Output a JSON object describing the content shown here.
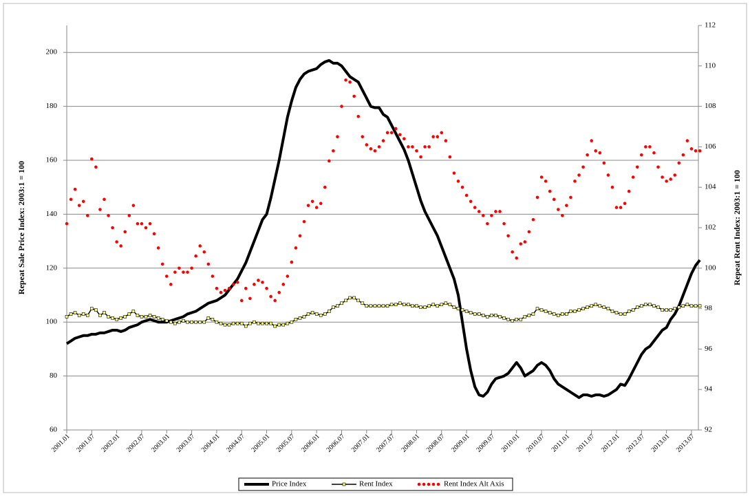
{
  "chart_data": {
    "type": "line",
    "y_label": "Repeat Sale Price Index: 2003:1 = 100",
    "y2_label": "Repeat Rent Index: 2003:1 = 100",
    "ylim": [
      60,
      210
    ],
    "yticks": [
      60,
      80,
      100,
      120,
      140,
      160,
      180,
      200
    ],
    "y2lim": [
      92,
      112
    ],
    "y2ticks": [
      92,
      94,
      96,
      98,
      100,
      102,
      104,
      106,
      108,
      110,
      112
    ],
    "grid": true,
    "legend": "bottom",
    "categories": [
      "2001.01",
      null,
      null,
      null,
      null,
      null,
      "2001.07",
      null,
      null,
      null,
      null,
      null,
      "2002.01",
      null,
      null,
      null,
      null,
      null,
      "2002.07",
      null,
      null,
      null,
      null,
      null,
      "2003.01",
      null,
      null,
      null,
      null,
      null,
      "2003.07",
      null,
      null,
      null,
      null,
      null,
      "2004.01",
      null,
      null,
      null,
      null,
      null,
      "2004.07",
      null,
      null,
      null,
      null,
      null,
      "2005.01",
      null,
      null,
      null,
      null,
      null,
      "2005.07",
      null,
      null,
      null,
      null,
      null,
      "2006.01",
      null,
      null,
      null,
      null,
      null,
      "2006.07",
      null,
      null,
      null,
      null,
      null,
      "2007.01",
      null,
      null,
      null,
      null,
      null,
      "2007.07",
      null,
      null,
      null,
      null,
      null,
      "2008.01",
      null,
      null,
      null,
      null,
      null,
      "2008.07",
      null,
      null,
      null,
      null,
      null,
      "2009.01",
      null,
      null,
      null,
      null,
      null,
      "2009.07",
      null,
      null,
      null,
      null,
      null,
      "2010.01",
      null,
      null,
      null,
      null,
      null,
      "2010.07",
      null,
      null,
      null,
      null,
      null,
      "2011.01",
      null,
      null,
      null,
      null,
      null,
      "2011.07",
      null,
      null,
      null,
      null,
      null,
      "2012.01",
      null,
      null,
      null,
      null,
      null,
      "2012.07",
      null,
      null,
      null,
      null,
      null,
      "2013.01",
      null,
      null,
      null,
      null,
      null,
      "2013.07",
      null,
      null
    ],
    "series": [
      {
        "name": "Price Index",
        "color": "#000000",
        "line": true,
        "marker": null,
        "values": [
          92,
          93,
          94,
          94.5,
          95,
          95,
          95.5,
          95.5,
          96,
          96,
          96.5,
          97,
          97,
          96.5,
          97,
          98,
          98.5,
          99,
          100,
          100.5,
          101,
          100.5,
          100,
          100,
          100,
          100.5,
          101,
          101.5,
          102,
          103,
          103.5,
          104,
          105,
          106,
          107,
          107.5,
          108,
          109,
          110,
          112,
          114,
          116,
          119,
          122,
          126,
          130,
          134,
          138,
          140,
          146,
          153,
          160,
          168,
          176,
          182,
          187,
          190,
          192,
          193,
          193.5,
          194,
          195.5,
          196.5,
          197,
          196,
          196,
          195,
          193,
          191,
          190,
          189,
          186,
          183,
          180,
          179.5,
          179.5,
          177,
          176,
          173,
          170,
          167,
          164,
          160,
          155,
          150,
          145,
          141,
          138,
          135,
          132,
          128,
          124,
          120,
          116,
          110,
          100,
          90,
          82,
          76,
          73,
          72.5,
          74,
          77,
          79,
          79.5,
          80,
          81,
          83,
          85,
          83,
          80,
          81,
          82,
          84,
          85,
          84,
          82,
          79,
          77,
          76,
          75,
          74,
          73,
          72,
          73,
          73,
          72.5,
          73,
          73,
          72.5,
          73,
          74,
          75,
          77,
          76.5,
          79,
          82,
          85,
          88,
          90,
          91,
          93,
          95,
          97,
          98,
          101,
          103,
          106,
          110,
          114,
          118,
          121,
          123
        ]
      },
      {
        "name": "Rent Index",
        "color": "#000000",
        "marker_color": "#ffff66",
        "line": true,
        "marker": "square",
        "values": [
          102,
          103,
          103.5,
          102.5,
          103,
          102.5,
          105,
          104.5,
          102.5,
          103.5,
          102,
          101.5,
          101,
          101.5,
          102,
          103,
          104,
          102.5,
          102,
          102,
          102.5,
          102,
          101.5,
          101,
          100.5,
          100,
          99.5,
          100,
          100.5,
          100,
          100,
          100,
          100,
          100,
          101.5,
          101,
          100,
          99.5,
          99,
          99,
          99.5,
          99.5,
          99.5,
          98.5,
          99.5,
          100,
          99.5,
          99.5,
          99.5,
          99.5,
          98.5,
          99,
          99,
          99.5,
          100,
          101,
          101.5,
          102,
          103,
          103.5,
          103,
          102.5,
          103,
          104,
          105.5,
          106,
          107,
          108,
          109,
          109,
          108,
          107,
          106,
          106,
          106,
          106,
          106,
          106,
          106.5,
          106.5,
          107,
          106.5,
          106.5,
          106,
          106,
          105.5,
          105.5,
          106,
          106.5,
          106,
          106.5,
          107,
          106.5,
          105.5,
          105,
          104.5,
          104,
          103.5,
          103,
          103,
          102.5,
          102,
          102.5,
          102.5,
          102,
          101.5,
          101,
          100.5,
          101,
          101,
          102,
          102.5,
          103,
          105,
          104.5,
          104,
          103.5,
          103,
          102.5,
          103,
          103,
          104,
          104,
          104.5,
          105,
          105.5,
          106,
          106.5,
          106,
          105.5,
          105,
          104,
          103.5,
          103,
          103,
          104,
          104.5,
          105.5,
          106,
          106.5,
          106.5,
          106,
          105.5,
          104.5,
          104.5,
          104.5,
          105,
          105.5,
          106,
          106.5,
          106,
          106,
          106
        ]
      },
      {
        "name": "Rent Index Alt Axis",
        "color": "#ff0000",
        "axis": "y2",
        "line": false,
        "marker": "circle",
        "values": [
          102.2,
          103.4,
          103.9,
          103.1,
          103.3,
          102.6,
          105.4,
          105.0,
          102.9,
          103.4,
          102.6,
          102.0,
          101.3,
          101.1,
          101.8,
          102.6,
          103.1,
          102.2,
          102.2,
          102.0,
          102.2,
          101.7,
          101.0,
          100.2,
          99.6,
          99.2,
          99.8,
          100.0,
          99.8,
          99.8,
          100.0,
          100.6,
          101.1,
          100.8,
          100.2,
          99.6,
          99.0,
          98.8,
          98.9,
          99.0,
          99.2,
          99.3,
          98.4,
          99.0,
          98.5,
          99.2,
          99.4,
          99.3,
          99.0,
          98.6,
          98.4,
          98.8,
          99.2,
          99.6,
          100.3,
          101.0,
          101.6,
          102.3,
          103.1,
          103.3,
          103.0,
          103.2,
          104.0,
          105.3,
          105.8,
          106.5,
          108.0,
          109.3,
          109.2,
          108.5,
          107.5,
          106.5,
          106.1,
          105.9,
          105.8,
          106.0,
          106.3,
          106.7,
          106.7,
          106.9,
          106.6,
          106.4,
          106.0,
          106.0,
          105.8,
          105.5,
          106.0,
          106.0,
          106.5,
          106.5,
          106.7,
          106.3,
          105.5,
          104.7,
          104.3,
          104.0,
          103.6,
          103.3,
          103.0,
          102.8,
          102.6,
          102.2,
          102.6,
          102.8,
          102.8,
          102.2,
          101.6,
          100.8,
          100.5,
          101.2,
          101.3,
          101.8,
          102.4,
          103.5,
          104.5,
          104.3,
          103.8,
          103.4,
          102.9,
          102.6,
          103.1,
          103.5,
          104.3,
          104.6,
          105.0,
          105.6,
          106.3,
          105.8,
          105.7,
          105.2,
          104.6,
          104.0,
          103.0,
          103.0,
          103.2,
          103.8,
          104.5,
          105.0,
          105.6,
          106.0,
          106.0,
          105.7,
          105.0,
          104.5,
          104.3,
          104.4,
          104.6,
          105.2,
          105.6,
          106.3,
          105.9,
          105.8,
          105.8
        ]
      }
    ]
  }
}
